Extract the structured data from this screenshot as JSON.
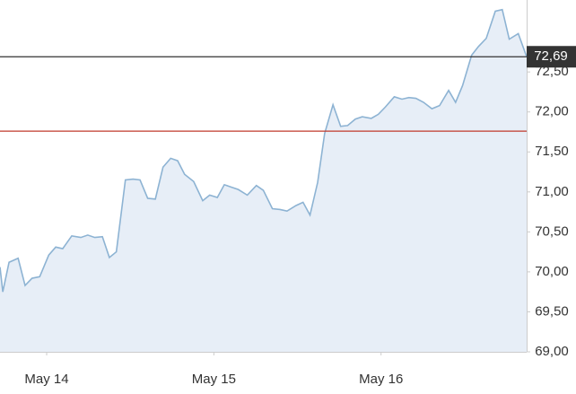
{
  "chart_data": {
    "type": "area",
    "x": [
      -6.7,
      -6.3,
      -5.4,
      -4.1,
      -3.1,
      -2.1,
      -1.0,
      0.3,
      1.3,
      2.3,
      3.6,
      4.9,
      5.9,
      6.9,
      8.0,
      9.0,
      10.0,
      11.3,
      12.4,
      13.4,
      14.5,
      15.6,
      16.7,
      17.8,
      18.8,
      19.8,
      21.1,
      22.4,
      23.4,
      24.5,
      25.5,
      26.5,
      27.5,
      28.8,
      30.1,
      31.1,
      32.4,
      33.5,
      34.5,
      35.8,
      36.8,
      37.8,
      38.9,
      39.9,
      41.1,
      42.2,
      43.2,
      44.3,
      45.3,
      46.6,
      47.6,
      48.6,
      49.9,
      51.0,
      52.0,
      53.0,
      54.1,
      55.3,
      56.4,
      57.7,
      58.7,
      59.7,
      61.0,
      62.0,
      63.1,
      64.4,
      65.4,
      66.4,
      67.7,
      68.9
    ],
    "series": [
      {
        "color": "#8db3d3",
        "fill": "#e7eef7",
        "values": [
          70.06,
          69.75,
          70.12,
          70.17,
          69.83,
          69.92,
          69.94,
          70.21,
          70.31,
          70.29,
          70.45,
          70.43,
          70.46,
          70.43,
          70.44,
          70.18,
          70.25,
          71.15,
          71.16,
          71.15,
          70.92,
          70.91,
          71.31,
          71.42,
          71.39,
          71.22,
          71.13,
          70.89,
          70.96,
          70.93,
          71.09,
          71.06,
          71.03,
          70.96,
          71.08,
          71.02,
          70.79,
          70.78,
          70.76,
          70.83,
          70.87,
          70.71,
          71.12,
          71.73,
          72.09,
          71.82,
          71.83,
          71.91,
          71.94,
          71.92,
          71.97,
          72.06,
          72.19,
          72.16,
          72.18,
          72.17,
          72.12,
          72.04,
          72.08,
          72.27,
          72.12,
          72.33,
          72.71,
          72.82,
          72.92,
          73.26,
          73.28,
          72.91,
          72.98,
          72.69
        ]
      }
    ],
    "xlim": [
      -6.7,
      68.9
    ],
    "xticks": [
      {
        "value": 0,
        "label": "May 14"
      },
      {
        "value": 24,
        "label": "May 15"
      },
      {
        "value": 48,
        "label": "May 16"
      }
    ],
    "ylim": [
      69,
      73.4
    ],
    "yticks": [
      {
        "value": 69,
        "label": "69,00"
      },
      {
        "value": 69.5,
        "label": "69,50"
      },
      {
        "value": 70,
        "label": "70,00"
      },
      {
        "value": 70.5,
        "label": "70,50"
      },
      {
        "value": 71,
        "label": "71,00"
      },
      {
        "value": 71.5,
        "label": "71,50"
      },
      {
        "value": 72,
        "label": "72,00"
      },
      {
        "value": 72.5,
        "label": "72,50"
      }
    ],
    "reference_lines": [
      {
        "value": 72.69,
        "label": "72,69",
        "color": "#333333"
      },
      {
        "value": 71.76,
        "color": "#c0392b"
      }
    ]
  }
}
